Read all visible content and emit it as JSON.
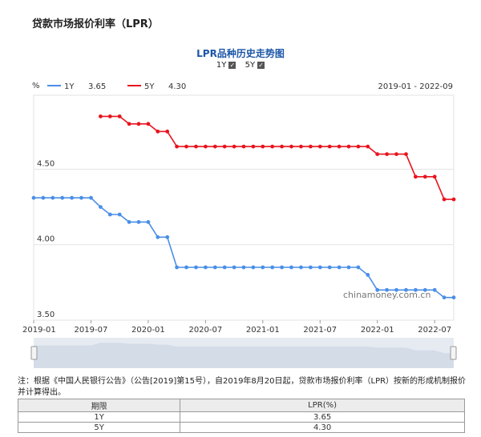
{
  "page": {
    "title": "贷款市场报价利率（LPR）"
  },
  "chart_header": {
    "title": "LPR品种历史走势图",
    "toggle_1y": "1Y",
    "toggle_5y": "5Y",
    "unit": "%",
    "date_range": "2019-01 - 2022-09",
    "legend_1y_label": "1Y",
    "legend_1y_value": "3.65",
    "legend_5y_label": "5Y",
    "legend_5y_value": "4.30",
    "watermark": "chinamoney.com.cn"
  },
  "colors": {
    "series_1y": "#4a8fe7",
    "series_5y": "#e8141e",
    "grid": "#e3e3e3",
    "navigator": "#d4dce8"
  },
  "chart_data": {
    "type": "line",
    "title": "LPR品种历史走势图",
    "ylabel": "%",
    "ylim": [
      3.5,
      4.99
    ],
    "yticks": [
      "3.50",
      "4.00",
      "4.50"
    ],
    "xlim": [
      "2019-01",
      "2022-09"
    ],
    "xticks": [
      "2019-01",
      "2019-07",
      "2020-01",
      "2020-07",
      "2021-01",
      "2021-07",
      "2022-01",
      "2022-07"
    ],
    "x": [
      "2019-01",
      "2019-02",
      "2019-03",
      "2019-04",
      "2019-05",
      "2019-06",
      "2019-07",
      "2019-08",
      "2019-09",
      "2019-10",
      "2019-11",
      "2019-12",
      "2020-01",
      "2020-02",
      "2020-03",
      "2020-04",
      "2020-05",
      "2020-06",
      "2020-07",
      "2020-08",
      "2020-09",
      "2020-10",
      "2020-11",
      "2020-12",
      "2021-01",
      "2021-02",
      "2021-03",
      "2021-04",
      "2021-05",
      "2021-06",
      "2021-07",
      "2021-08",
      "2021-09",
      "2021-10",
      "2021-11",
      "2021-12",
      "2022-01",
      "2022-02",
      "2022-03",
      "2022-04",
      "2022-05",
      "2022-06",
      "2022-07",
      "2022-08",
      "2022-09"
    ],
    "series": [
      {
        "name": "1Y",
        "values": [
          4.31,
          4.31,
          4.31,
          4.31,
          4.31,
          4.31,
          4.31,
          4.25,
          4.2,
          4.2,
          4.15,
          4.15,
          4.15,
          4.05,
          4.05,
          3.85,
          3.85,
          3.85,
          3.85,
          3.85,
          3.85,
          3.85,
          3.85,
          3.85,
          3.85,
          3.85,
          3.85,
          3.85,
          3.85,
          3.85,
          3.85,
          3.85,
          3.85,
          3.85,
          3.85,
          3.8,
          3.7,
          3.7,
          3.7,
          3.7,
          3.7,
          3.7,
          3.7,
          3.65,
          3.65
        ]
      },
      {
        "name": "5Y",
        "values": [
          null,
          null,
          null,
          null,
          null,
          null,
          null,
          4.85,
          4.85,
          4.85,
          4.8,
          4.8,
          4.8,
          4.75,
          4.75,
          4.65,
          4.65,
          4.65,
          4.65,
          4.65,
          4.65,
          4.65,
          4.65,
          4.65,
          4.65,
          4.65,
          4.65,
          4.65,
          4.65,
          4.65,
          4.65,
          4.65,
          4.65,
          4.65,
          4.65,
          4.65,
          4.6,
          4.6,
          4.6,
          4.6,
          4.45,
          4.45,
          4.45,
          4.3,
          4.3
        ]
      }
    ],
    "grid": true,
    "legend": "top-left"
  },
  "footnote": {
    "text": "注：根据《中国人民银行公告》（公告[2019]第15号），自2019年8月20日起，贷款市场报价利率（LPR）按新的形成机制报价并计算得出。"
  },
  "rate_table": {
    "headers": [
      "期限",
      "LPR(%)"
    ],
    "rows": [
      [
        "1Y",
        "3.65"
      ],
      [
        "5Y",
        "4.30"
      ]
    ]
  }
}
